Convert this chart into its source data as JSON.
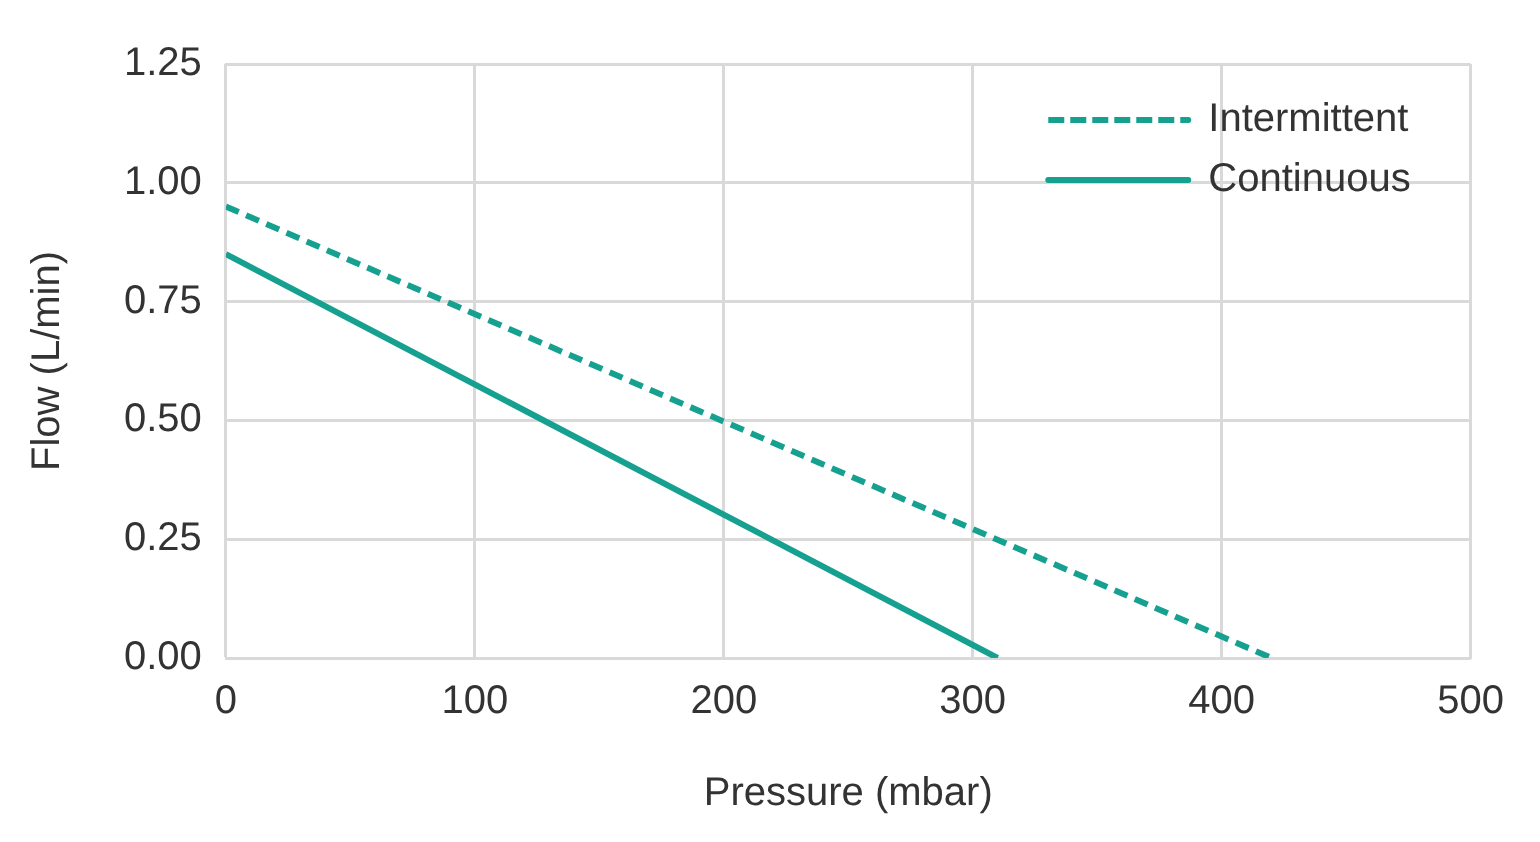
{
  "chart_data": {
    "type": "line",
    "xlabel": "Pressure (mbar)",
    "ylabel": "Flow (L/min)",
    "series": [
      {
        "name": "Intermittent",
        "color": "#16a090",
        "x": [
          0,
          420
        ],
        "values": [
          0.95,
          0
        ],
        "line_style": "dashed"
      },
      {
        "name": "Continuous",
        "color": "#16a090",
        "x": [
          0,
          310
        ],
        "values": [
          0.85,
          0
        ],
        "line_style": "solid"
      }
    ],
    "xlim": [
      0,
      500
    ],
    "xticks": [
      0,
      100,
      200,
      300,
      400,
      500
    ],
    "ylim": [
      0,
      1.25
    ],
    "yticks": [
      {
        "value": 0,
        "label": "0.00"
      },
      {
        "value": 0.25,
        "label": "0.25"
      },
      {
        "value": 0.5,
        "label": "0.50"
      },
      {
        "value": 0.75,
        "label": "0.75"
      },
      {
        "value": 1,
        "label": "1.00"
      },
      {
        "value": 1.25,
        "label": "1.25"
      }
    ],
    "grid": true,
    "legend": "top right",
    "marker": "none"
  }
}
